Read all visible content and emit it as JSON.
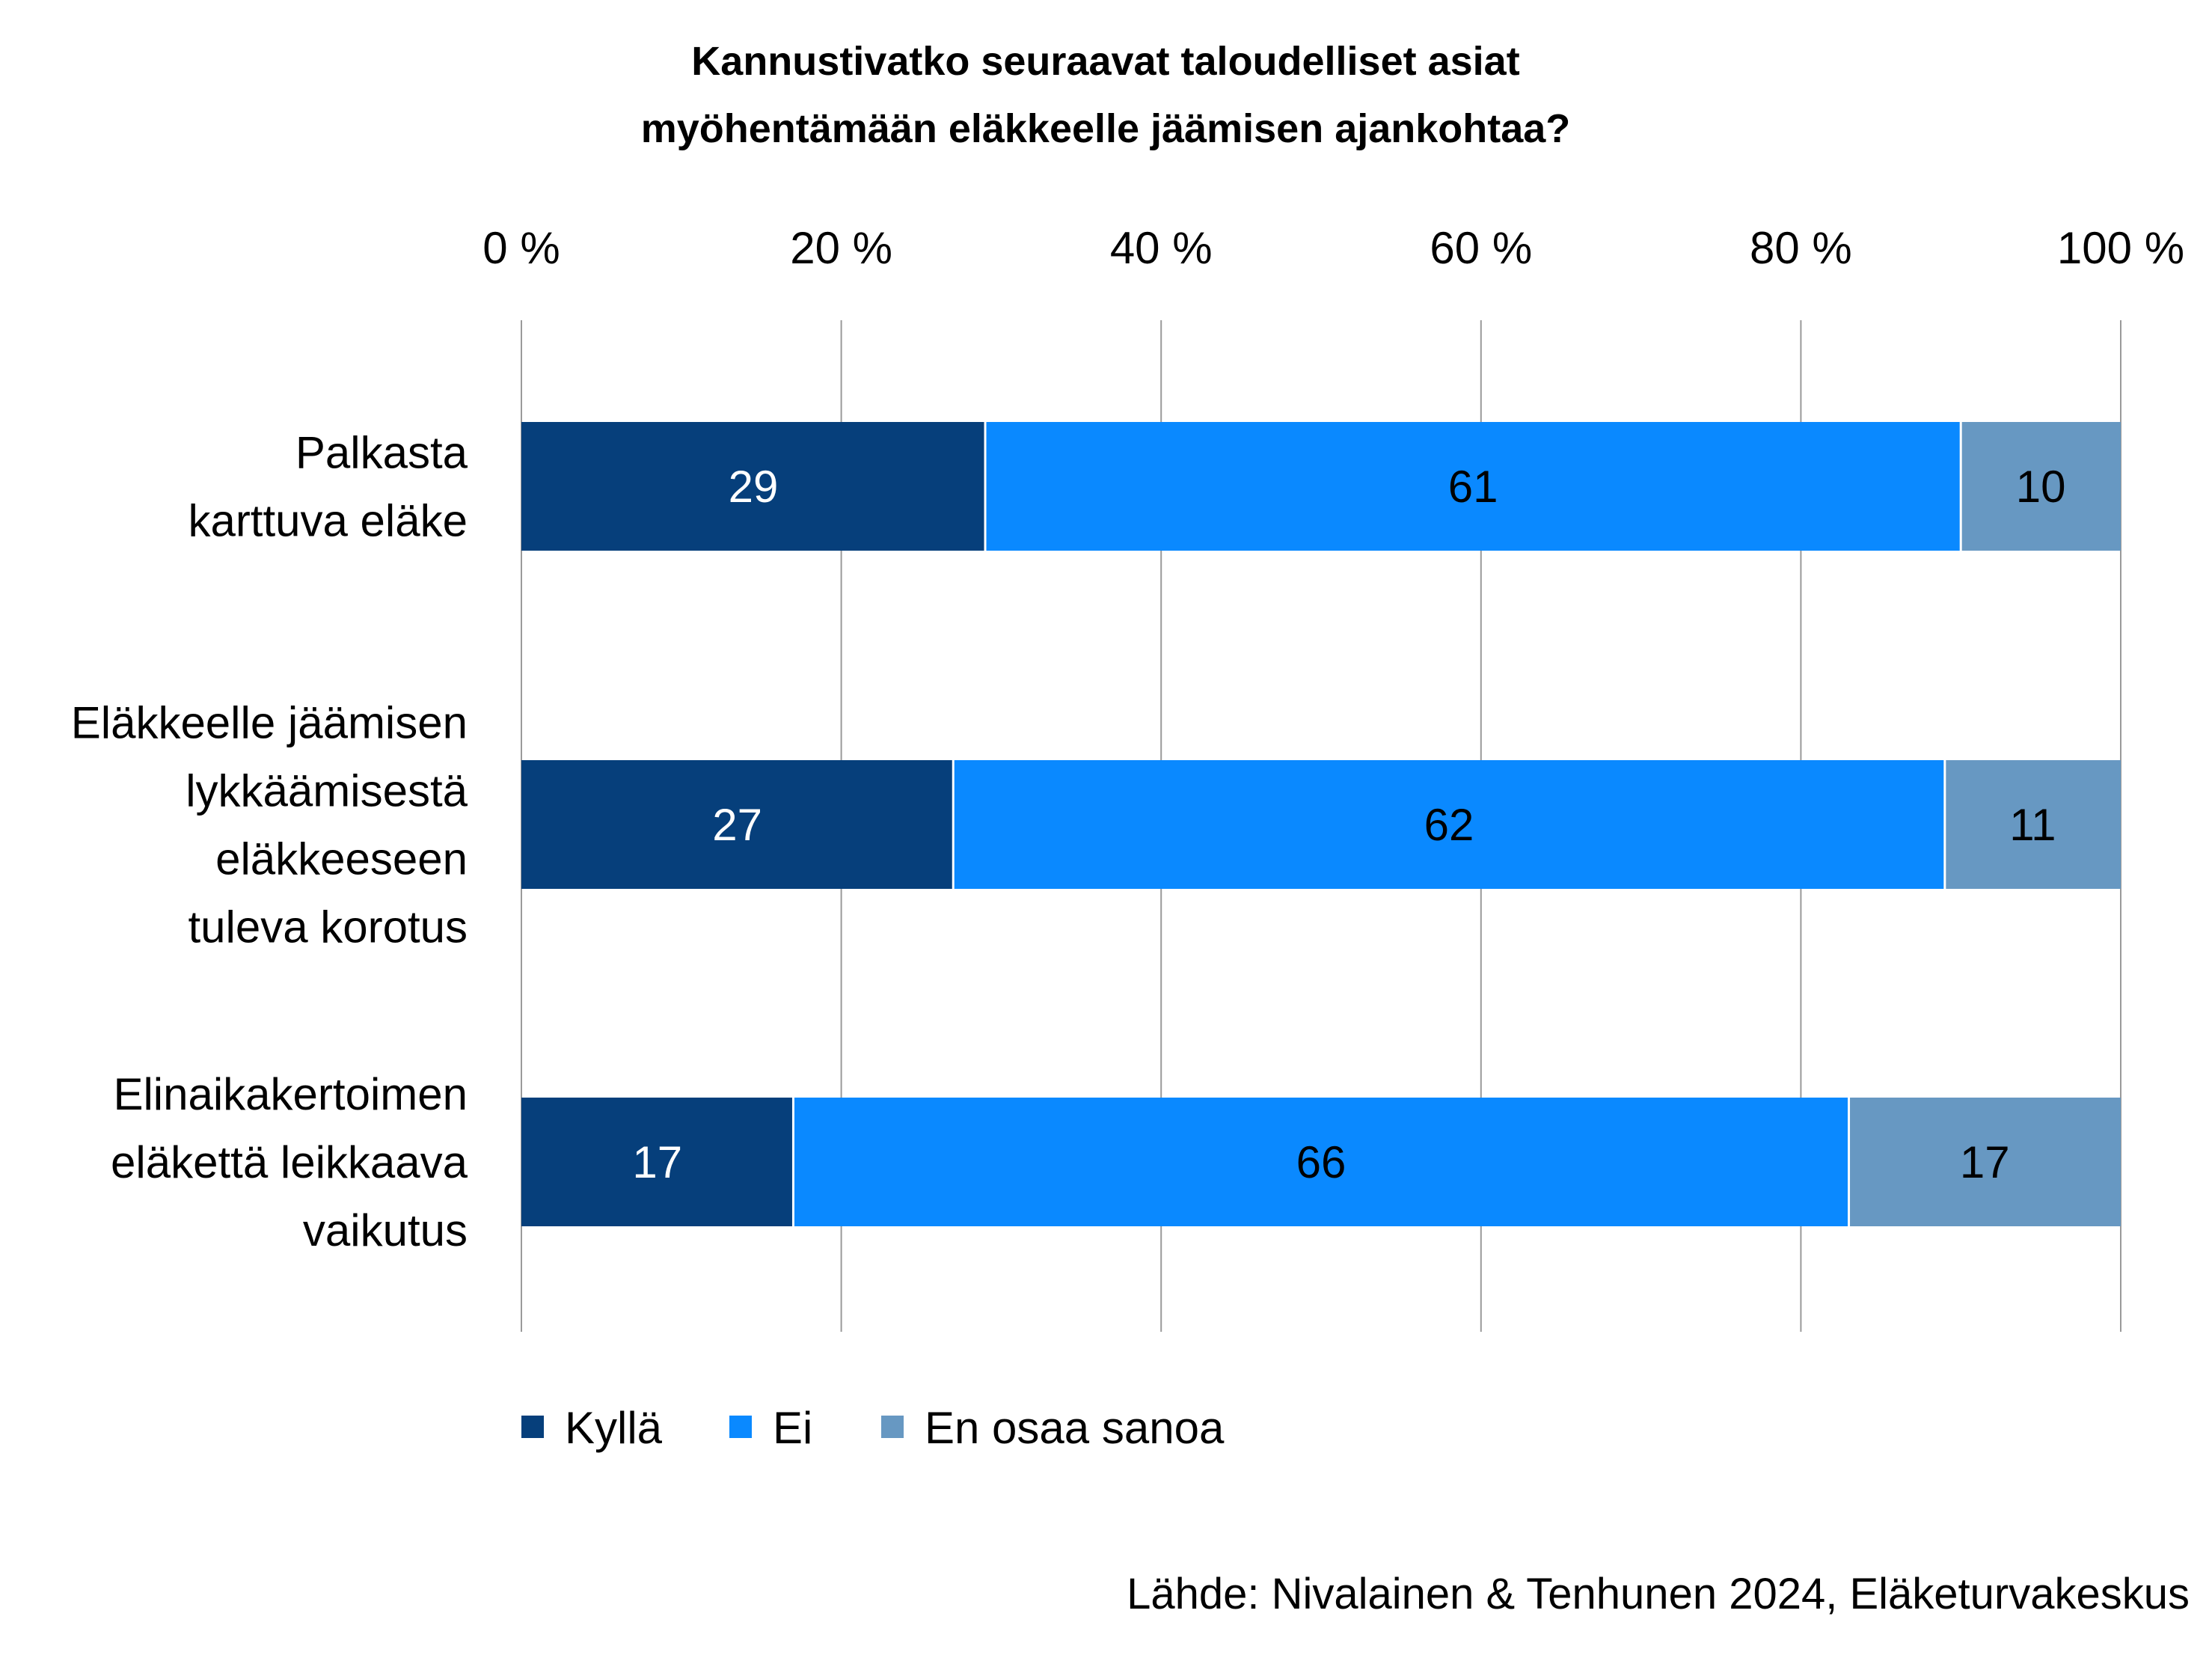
{
  "chart_data": {
    "type": "bar",
    "orientation": "horizontal",
    "stacked": true,
    "title_lines": [
      "Kannustivatko seuraavat taloudelliset asiat",
      "myöhentämään eläkkeelle jäämisen ajankohtaa?"
    ],
    "categories": [
      [
        "Palkasta",
        "karttuva eläke"
      ],
      [
        "Eläkkeelle jäämisen",
        "lykkäämisestä",
        "eläkkeeseen",
        "tuleva korotus"
      ],
      [
        "Elinaikakertoimen",
        "eläkettä leikkaava",
        "vaikutus"
      ]
    ],
    "series": [
      {
        "name": "Kyllä",
        "values": [
          29,
          27,
          17
        ],
        "color": "#063F7B",
        "label_color": "#ffffff"
      },
      {
        "name": "Ei",
        "values": [
          61,
          62,
          66
        ],
        "color": "#0A89FF",
        "label_color": "#000000"
      },
      {
        "name": "En osaa sanoa",
        "values": [
          10,
          11,
          17
        ],
        "color": "#6798C2",
        "label_color": "#000000"
      }
    ],
    "x_axis": {
      "position": "top",
      "range": [
        0,
        100
      ],
      "ticks": [
        0,
        20,
        40,
        60,
        80,
        100
      ],
      "tick_labels": [
        "0 %",
        "20 %",
        "40 %",
        "60 %",
        "80 %",
        "100 %"
      ],
      "grid": true
    },
    "legend": {
      "position": "bottom-left"
    },
    "source": "Lähde: Nivalainen & Tenhunen 2024, Eläketurvakeskus"
  }
}
